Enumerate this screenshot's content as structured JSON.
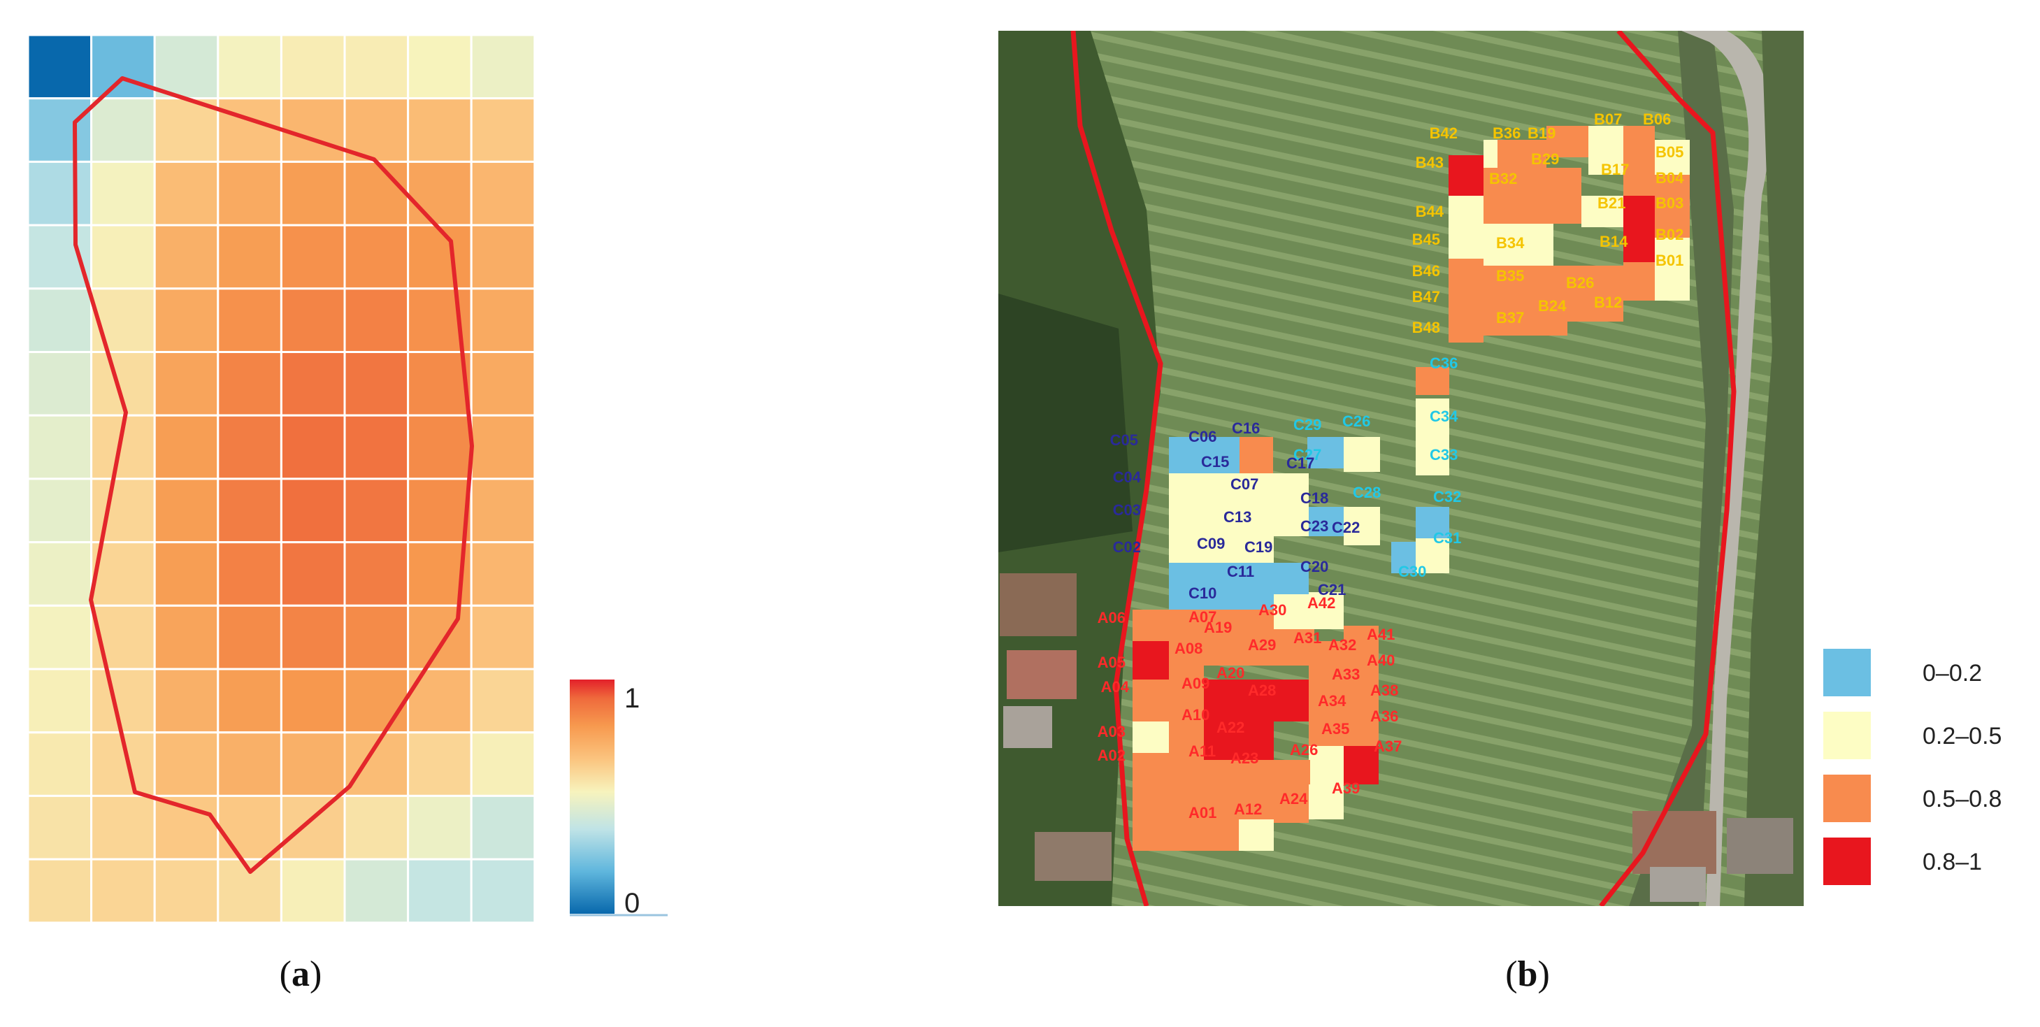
{
  "figure": {
    "label_a_letter": "a",
    "label_a_paren_open": "(",
    "label_a_paren_close": ")",
    "label_b_letter": "b",
    "label_b_paren_open": "(",
    "label_b_paren_close": ")"
  },
  "chart_data": [
    {
      "type": "heatmap",
      "panel": "a",
      "title": "",
      "xlabel": "",
      "ylabel": "",
      "n_cols": 8,
      "n_rows": 14,
      "grid": true,
      "colorscale": [
        "#0868ac",
        "#5fb6dd",
        "#bfe3e6",
        "#f7f3bd",
        "#fbc47f",
        "#f79a4f",
        "#ef6a3c",
        "#e3202a"
      ],
      "colorbar": {
        "min": 0,
        "max": 1,
        "tick_labels": [
          "1",
          "0"
        ],
        "placement": "right"
      },
      "boundary_outline_color": "#e3262b",
      "values": [
        [
          0.0,
          0.16,
          0.34,
          0.42,
          0.45,
          0.45,
          0.43,
          0.4
        ],
        [
          0.2,
          0.36,
          0.52,
          0.58,
          0.62,
          0.62,
          0.6,
          0.56
        ],
        [
          0.26,
          0.42,
          0.6,
          0.66,
          0.7,
          0.7,
          0.68,
          0.62
        ],
        [
          0.3,
          0.44,
          0.64,
          0.7,
          0.74,
          0.74,
          0.72,
          0.65
        ],
        [
          0.33,
          0.47,
          0.66,
          0.74,
          0.78,
          0.79,
          0.74,
          0.66
        ],
        [
          0.36,
          0.5,
          0.68,
          0.78,
          0.82,
          0.82,
          0.76,
          0.66
        ],
        [
          0.38,
          0.52,
          0.7,
          0.8,
          0.84,
          0.83,
          0.76,
          0.66
        ],
        [
          0.38,
          0.52,
          0.7,
          0.8,
          0.84,
          0.82,
          0.75,
          0.64
        ],
        [
          0.4,
          0.52,
          0.7,
          0.79,
          0.82,
          0.8,
          0.72,
          0.62
        ],
        [
          0.42,
          0.52,
          0.68,
          0.76,
          0.78,
          0.76,
          0.68,
          0.58
        ],
        [
          0.44,
          0.52,
          0.64,
          0.7,
          0.72,
          0.7,
          0.62,
          0.52
        ],
        [
          0.46,
          0.52,
          0.6,
          0.64,
          0.64,
          0.6,
          0.52,
          0.44
        ],
        [
          0.48,
          0.52,
          0.56,
          0.56,
          0.54,
          0.48,
          0.4,
          0.32
        ],
        [
          0.5,
          0.52,
          0.52,
          0.5,
          0.44,
          0.34,
          0.3,
          0.3
        ]
      ]
    },
    {
      "type": "heatmap",
      "panel": "b",
      "title": "",
      "xlabel": "",
      "ylabel": "",
      "background": "aerial photograph of vineyard",
      "legend": {
        "placement": "right",
        "classes": [
          {
            "label": "0–0.2",
            "color": "#6bbfe3"
          },
          {
            "label": "0.2–0.5",
            "color": "#fdfdc4"
          },
          {
            "label": "0.5–0.8",
            "color": "#f88b4e"
          },
          {
            "label": "0.8–1",
            "color": "#e8161e"
          }
        ]
      },
      "label_colors": {
        "A": "#ff2a2a",
        "B": "#f5c400",
        "C_left": "#2a2a9a",
        "C_right": "#22c8e6"
      },
      "cells": [
        {
          "id": "B42",
          "cls": 3,
          "col": 0,
          "row": 0
        },
        {
          "id": "B36",
          "cls": 1,
          "col": 1,
          "row": 0
        },
        {
          "id": "B19",
          "cls": 2,
          "col": 2,
          "row": 0
        },
        {
          "id": "B07",
          "cls": 1,
          "col": 3,
          "row": 0
        },
        {
          "id": "B06",
          "cls": 2,
          "col": 5,
          "row": 0
        },
        {
          "id": "B43",
          "cls": 3,
          "col": 0,
          "row": 1
        },
        {
          "id": "B32",
          "cls": 2,
          "col": 1,
          "row": 1
        },
        {
          "id": "B29",
          "cls": 2,
          "col": 2,
          "row": 1
        },
        {
          "id": "B17",
          "cls": 2,
          "col": 4,
          "row": 1
        },
        {
          "id": "B05",
          "cls": 1,
          "col": 5,
          "row": 1
        },
        {
          "id": "B04",
          "cls": 2,
          "col": 5,
          "row": 2
        },
        {
          "id": "B44",
          "cls": 1,
          "col": 0,
          "row": 2
        },
        {
          "id": "B21",
          "cls": 1,
          "col": 3,
          "row": 2
        },
        {
          "id": "B03",
          "cls": 2,
          "col": 5,
          "row": 3
        },
        {
          "id": "B45",
          "cls": 1,
          "col": 0,
          "row": 3
        },
        {
          "id": "B34",
          "cls": 1,
          "col": 1,
          "row": 3
        },
        {
          "id": "B14",
          "cls": 3,
          "col": 4,
          "row": 3
        },
        {
          "id": "B02",
          "cls": 1,
          "col": 5,
          "row": 3
        },
        {
          "id": "B46",
          "cls": 2,
          "col": 0,
          "row": 4
        },
        {
          "id": "B35",
          "cls": 2,
          "col": 1,
          "row": 4
        },
        {
          "id": "B26",
          "cls": 2,
          "col": 3,
          "row": 4
        },
        {
          "id": "B01",
          "cls": 1,
          "col": 5,
          "row": 4
        },
        {
          "id": "B47",
          "cls": 2,
          "col": 0,
          "row": 5
        },
        {
          "id": "B24",
          "cls": 2,
          "col": 2,
          "row": 5
        },
        {
          "id": "B12",
          "cls": 2,
          "col": 3,
          "row": 5
        },
        {
          "id": "B48",
          "cls": 2,
          "col": 0,
          "row": 6
        },
        {
          "id": "B37",
          "cls": 2,
          "col": 1,
          "row": 6
        },
        {
          "id": "C36",
          "cls": 2,
          "col": 0,
          "row": 0
        },
        {
          "id": "C34",
          "cls": 1,
          "col": 0,
          "row": 1
        },
        {
          "id": "C33",
          "cls": 1,
          "col": 0,
          "row": 2
        },
        {
          "id": "C32",
          "cls": 0,
          "col": 0,
          "row": 3
        },
        {
          "id": "C31",
          "cls": 1,
          "col": 0,
          "row": 4
        },
        {
          "id": "C30",
          "cls": 0,
          "col": -1,
          "row": 5
        },
        {
          "id": "C29",
          "cls": 1,
          "col": 3,
          "row": 0
        },
        {
          "id": "C28",
          "cls": 0,
          "col": 2,
          "row": 0
        },
        {
          "id": "C27",
          "cls": 1,
          "col": 3,
          "row": 1
        },
        {
          "id": "C26",
          "cls": 1,
          "col": 3,
          "row": 2
        },
        {
          "id": "C05",
          "cls": 0,
          "col": 0,
          "row": 0
        },
        {
          "id": "C06",
          "cls": 0,
          "col": 0,
          "row": 0
        },
        {
          "id": "C16",
          "cls": 2,
          "col": 1,
          "row": 0
        },
        {
          "id": "C15",
          "cls": 1,
          "col": 0,
          "row": 1
        },
        {
          "id": "C17",
          "cls": 1,
          "col": 2,
          "row": 1
        },
        {
          "id": "C04",
          "cls": 1,
          "col": 0,
          "row": 2
        },
        {
          "id": "C07",
          "cls": 1,
          "col": 1,
          "row": 2
        },
        {
          "id": "C18",
          "cls": 0,
          "col": 2,
          "row": 2
        },
        {
          "id": "C03",
          "cls": 1,
          "col": 0,
          "row": 3
        },
        {
          "id": "C13",
          "cls": 1,
          "col": 1,
          "row": 3
        },
        {
          "id": "C23",
          "cls": 0,
          "col": 2,
          "row": 3
        },
        {
          "id": "C22",
          "cls": 1,
          "col": 3,
          "row": 3
        },
        {
          "id": "C02",
          "cls": 0,
          "col": 0,
          "row": 4
        },
        {
          "id": "C09",
          "cls": 0,
          "col": 1,
          "row": 4
        },
        {
          "id": "C19",
          "cls": 0,
          "col": 2,
          "row": 4
        },
        {
          "id": "C11",
          "cls": 0,
          "col": 1,
          "row": 5
        },
        {
          "id": "C20",
          "cls": 1,
          "col": 2,
          "row": 5
        },
        {
          "id": "C10",
          "cls": 0,
          "col": 0,
          "row": 6
        },
        {
          "id": "C21",
          "cls": 1,
          "col": 2,
          "row": 6
        },
        {
          "id": "A07",
          "cls": 2,
          "col": 1,
          "row": 0
        },
        {
          "id": "A30",
          "cls": 2,
          "col": 3,
          "row": 0
        },
        {
          "id": "A42",
          "cls": 1,
          "col": 4,
          "row": 0
        },
        {
          "id": "A06",
          "cls": 2,
          "col": 0,
          "row": 0
        },
        {
          "id": "A19",
          "cls": 2,
          "col": 2,
          "row": 1
        },
        {
          "id": "A41",
          "cls": 2,
          "col": 5,
          "row": 1
        },
        {
          "id": "A05",
          "cls": 3,
          "col": 0,
          "row": 1
        },
        {
          "id": "A08",
          "cls": 2,
          "col": 1,
          "row": 1
        },
        {
          "id": "A29",
          "cls": 2,
          "col": 3,
          "row": 1
        },
        {
          "id": "A31",
          "cls": 2,
          "col": 4,
          "row": 1
        },
        {
          "id": "A32",
          "cls": 2,
          "col": 4,
          "row": 1
        },
        {
          "id": "A40",
          "cls": 2,
          "col": 5,
          "row": 2
        },
        {
          "id": "A04",
          "cls": 2,
          "col": 0,
          "row": 2
        },
        {
          "id": "A09",
          "cls": 2,
          "col": 1,
          "row": 2
        },
        {
          "id": "A20",
          "cls": 3,
          "col": 2,
          "row": 2
        },
        {
          "id": "A28",
          "cls": 3,
          "col": 3,
          "row": 2
        },
        {
          "id": "A33",
          "cls": 2,
          "col": 4,
          "row": 2
        },
        {
          "id": "A38",
          "cls": 2,
          "col": 5,
          "row": 3
        },
        {
          "id": "A10",
          "cls": 2,
          "col": 1,
          "row": 3
        },
        {
          "id": "A22",
          "cls": 3,
          "col": 2,
          "row": 3
        },
        {
          "id": "A34",
          "cls": 2,
          "col": 4,
          "row": 3
        },
        {
          "id": "A36",
          "cls": 2,
          "col": 5,
          "row": 3
        },
        {
          "id": "A03",
          "cls": 1,
          "col": 0,
          "row": 4
        },
        {
          "id": "A35",
          "cls": 1,
          "col": 4,
          "row": 4
        },
        {
          "id": "A02",
          "cls": 2,
          "col": 0,
          "row": 4
        },
        {
          "id": "A11",
          "cls": 2,
          "col": 1,
          "row": 4
        },
        {
          "id": "A23",
          "cls": 2,
          "col": 2,
          "row": 4
        },
        {
          "id": "A26",
          "cls": 2,
          "col": 3,
          "row": 4
        },
        {
          "id": "A37",
          "cls": 3,
          "col": 5,
          "row": 4
        },
        {
          "id": "A39",
          "cls": 1,
          "col": 4,
          "row": 5
        },
        {
          "id": "A01",
          "cls": 2,
          "col": 0,
          "row": 5
        },
        {
          "id": "A12",
          "cls": 2,
          "col": 1,
          "row": 5
        },
        {
          "id": "A24",
          "cls": 1,
          "col": 2,
          "row": 5
        }
      ]
    }
  ]
}
